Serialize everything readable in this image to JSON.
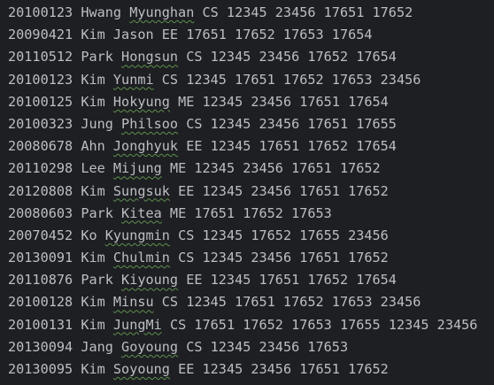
{
  "editor": {
    "colors": {
      "background": "#1e1f22",
      "text": "#bcbec4",
      "typo_underline": "#5f8f4e"
    },
    "lines": [
      {
        "id": "20100123",
        "last": "Hwang",
        "first": "Myunghan",
        "first_flagged": true,
        "rest": "CS 12345 23456 17651 17652"
      },
      {
        "id": "20090421",
        "last": "Kim",
        "first": "Jason",
        "first_flagged": false,
        "rest": "EE 17651 17652 17653 17654"
      },
      {
        "id": "20110512",
        "last": "Park",
        "first": "Hongsun",
        "first_flagged": true,
        "rest": "CS 12345 23456 17652 17654"
      },
      {
        "id": "20100123",
        "last": "Kim",
        "first": "Yunmi",
        "first_flagged": true,
        "rest": "CS 12345 17651 17652 17653 23456"
      },
      {
        "id": "20100125",
        "last": "Kim",
        "first": "Hokyung",
        "first_flagged": true,
        "rest": "ME 12345 23456 17651 17654"
      },
      {
        "id": "20100323",
        "last": "Jung",
        "first": "Philsoo",
        "first_flagged": true,
        "rest": "CS 12345 23456 17651 17655"
      },
      {
        "id": "20080678",
        "last": "Ahn",
        "first": "Jonghyuk",
        "first_flagged": true,
        "rest": "EE 12345 17651 17652 17654"
      },
      {
        "id": "20110298",
        "last": "Lee",
        "first": "Mijung",
        "first_flagged": true,
        "rest": "ME 12345 23456 17651 17652"
      },
      {
        "id": "20120808",
        "last": "Kim",
        "first": "Sungsuk",
        "first_flagged": true,
        "rest": "EE 12345 23456 17651 17652"
      },
      {
        "id": "20080603",
        "last": "Park",
        "first": "Kitea",
        "first_flagged": true,
        "rest": "ME 17651 17652 17653"
      },
      {
        "id": "20070452",
        "last": "Ko",
        "first": "Kyungmin",
        "first_flagged": true,
        "rest": "CS 12345 17652 17655 23456"
      },
      {
        "id": "20130091",
        "last": "Kim",
        "first": "Chulmin",
        "first_flagged": true,
        "rest": "CS 12345 23456 17651 17652"
      },
      {
        "id": "20110876",
        "last": "Park",
        "first": "Kiyoung",
        "first_flagged": true,
        "rest": "EE 12345 17651 17652 17654"
      },
      {
        "id": "20100128",
        "last": "Kim",
        "first": "Minsu",
        "first_flagged": true,
        "rest": "CS 12345 17651 17652 17653 23456"
      },
      {
        "id": "20100131",
        "last": "Kim",
        "first": "JungMi",
        "first_flagged": true,
        "rest": "CS 17651 17652 17653 17655 12345 23456"
      },
      {
        "id": "20130094",
        "last": "Jang",
        "first": "Goyoung",
        "first_flagged": true,
        "rest": "CS 12345 23456 17653"
      },
      {
        "id": "20130095",
        "last": "Kim",
        "first": "Soyoung",
        "first_flagged": true,
        "rest": "EE 12345 23456 17651 17652"
      }
    ]
  }
}
